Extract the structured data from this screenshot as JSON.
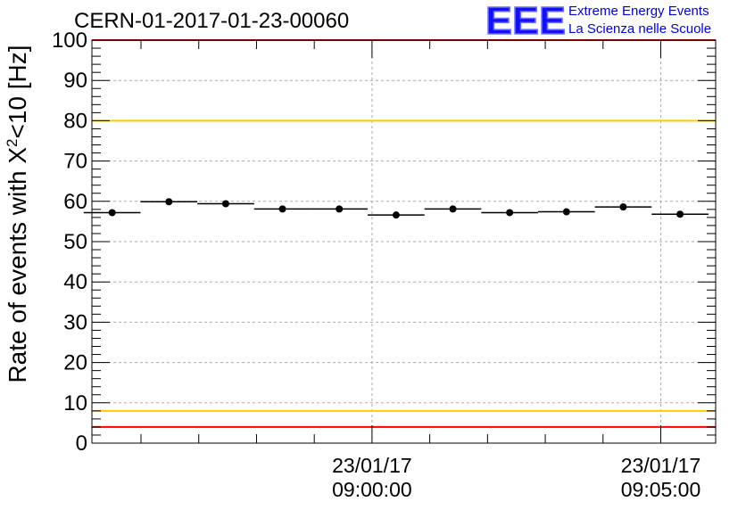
{
  "header": {
    "title": "CERN-01-2017-01-23-00060",
    "logo_text": "EEE",
    "logo_line1": "Extreme Energy Events",
    "logo_line2": "La Scienza nelle Scuole"
  },
  "chart_data": {
    "type": "scatter",
    "title": "CERN-01-2017-01-23-00060",
    "ylabel": "Rate of events with X²<10 [Hz]",
    "ylabel_base": "Rate of events with X",
    "ylabel_sup": "2",
    "ylabel_rest": "<10 [Hz]",
    "ylim": [
      0,
      100
    ],
    "yticks": [
      "0",
      "10",
      "20",
      "30",
      "40",
      "50",
      "60",
      "70",
      "80",
      "90",
      "100"
    ],
    "xlim": [
      "08:55:09",
      "09:05:57"
    ],
    "xtick_labels": [
      {
        "date": "23/01/17",
        "time": "09:00:00"
      },
      {
        "date": "23/01/17",
        "time": "09:05:00"
      }
    ],
    "grid": true,
    "series": [
      {
        "bin_width_s": 59,
        "x": [
          "08:55:30",
          "08:56:29",
          "08:57:28",
          "08:58:27",
          "08:59:26",
          "09:00:25",
          "09:01:24",
          "09:02:23",
          "09:03:22",
          "09:04:21",
          "09:05:20"
        ],
        "y": [
          57.2,
          59.9,
          59.4,
          58.1,
          58.1,
          56.6,
          58.1,
          57.2,
          57.4,
          58.6,
          56.8
        ]
      }
    ],
    "reference_lines": [
      {
        "y": 100,
        "color": "#ff0000"
      },
      {
        "y": 80,
        "color": "#ffcc00"
      },
      {
        "y": 8,
        "color": "#ffcc00"
      },
      {
        "y": 4,
        "color": "#ff0000"
      }
    ]
  }
}
